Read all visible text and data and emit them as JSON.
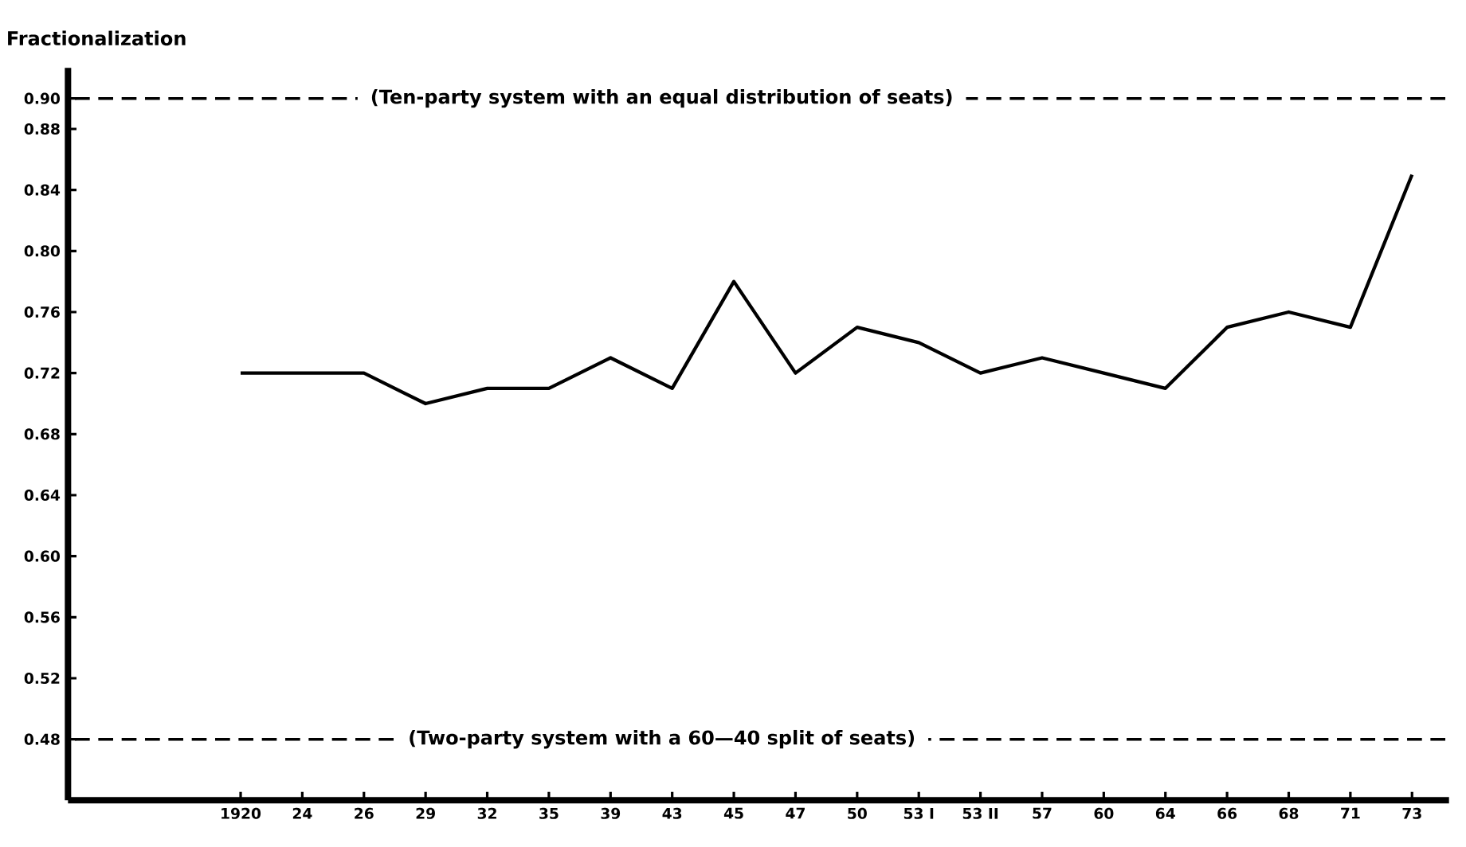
{
  "chart_data": {
    "type": "line",
    "ylabel": "Fractionalization",
    "categories": [
      "1920",
      "24",
      "26",
      "29",
      "32",
      "35",
      "39",
      "43",
      "45",
      "47",
      "50",
      "53 I",
      "53 II",
      "57",
      "60",
      "64",
      "66",
      "68",
      "71",
      "73"
    ],
    "series": [
      {
        "color": "#000000",
        "values": [
          0.72,
          0.72,
          0.72,
          0.7,
          0.71,
          0.71,
          0.73,
          0.71,
          0.78,
          0.72,
          0.75,
          0.74,
          0.72,
          0.73,
          0.72,
          0.71,
          0.75,
          0.76,
          0.75,
          0.85
        ]
      }
    ],
    "ylim": [
      0.44,
      0.92
    ],
    "yticks": [
      0.48,
      0.52,
      0.56,
      {
        "value": 0.6,
        "label": "0.60"
      },
      0.64,
      0.68,
      0.72,
      0.76,
      {
        "value": 0.8,
        "label": "0.80"
      },
      0.84,
      0.88,
      {
        "value": 0.9,
        "label": "0.90"
      }
    ],
    "ref_lines": [
      {
        "axis": "y",
        "value": 0.9,
        "label": "(Ten-party system with an equal distribution of seats)",
        "line_style": "dashed"
      },
      {
        "axis": "y",
        "value": 0.48,
        "label": "(Two-party system with a 60—40 split of seats)",
        "line_style": "dashed"
      }
    ],
    "grid": false,
    "marker": "none",
    "line_style": "solid"
  }
}
